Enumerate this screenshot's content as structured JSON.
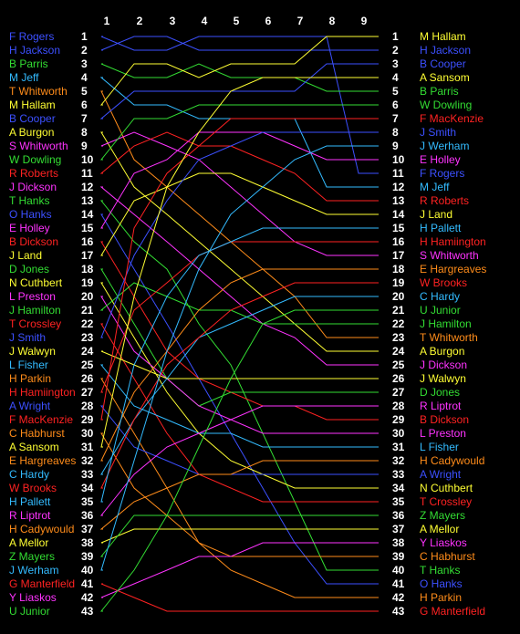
{
  "chart_data": {
    "type": "line",
    "chart_kind": "position-progression",
    "grid": false,
    "columns": [
      "1",
      "2",
      "3",
      "4",
      "5",
      "6",
      "7",
      "8",
      "9"
    ],
    "series": [
      {
        "name": "F Rogers",
        "color": "#3c50ff",
        "positions": [
          1,
          2,
          2,
          1,
          1,
          1,
          1,
          1,
          11
        ]
      },
      {
        "name": "H Jackson",
        "color": "#3c50ff",
        "positions": [
          2,
          1,
          1,
          2,
          2,
          2,
          2,
          2,
          2
        ]
      },
      {
        "name": "B Parris",
        "color": "#33dd33",
        "positions": [
          3,
          4,
          4,
          3,
          4,
          4,
          4,
          5,
          5
        ]
      },
      {
        "name": "M Jeff",
        "color": "#33bbff",
        "positions": [
          4,
          6,
          6,
          7,
          7,
          7,
          7,
          12,
          12
        ]
      },
      {
        "name": "T Whitworth",
        "color": "#ff8c1a",
        "positions": [
          5,
          10,
          12,
          14,
          16,
          18,
          20,
          23,
          23
        ]
      },
      {
        "name": "M Hallam",
        "color": "#ffff33",
        "positions": [
          6,
          3,
          3,
          4,
          3,
          3,
          3,
          1,
          1
        ]
      },
      {
        "name": "B Cooper",
        "color": "#3c50ff",
        "positions": [
          7,
          5,
          5,
          5,
          5,
          5,
          5,
          3,
          3
        ]
      },
      {
        "name": "A Burgon",
        "color": "#ffff33",
        "positions": [
          8,
          12,
          14,
          16,
          18,
          20,
          22,
          24,
          24
        ]
      },
      {
        "name": "S Whitworth",
        "color": "#ff33ff",
        "positions": [
          9,
          8,
          9,
          10,
          12,
          14,
          16,
          17,
          17
        ]
      },
      {
        "name": "W Dowling",
        "color": "#33dd33",
        "positions": [
          10,
          7,
          7,
          6,
          6,
          6,
          6,
          6,
          6
        ]
      },
      {
        "name": "R Roberts",
        "color": "#ff2222",
        "positions": [
          11,
          9,
          8,
          9,
          9,
          10,
          11,
          13,
          13
        ]
      },
      {
        "name": "J Dickson",
        "color": "#ff33ff",
        "positions": [
          12,
          14,
          16,
          18,
          20,
          22,
          23,
          25,
          25
        ]
      },
      {
        "name": "T Hanks",
        "color": "#33dd33",
        "positions": [
          13,
          16,
          18,
          22,
          25,
          30,
          35,
          40,
          40
        ]
      },
      {
        "name": "O Hanks",
        "color": "#3c50ff",
        "positions": [
          14,
          18,
          22,
          26,
          30,
          34,
          38,
          41,
          41
        ]
      },
      {
        "name": "E Holley",
        "color": "#ff33ff",
        "positions": [
          15,
          11,
          10,
          8,
          8,
          8,
          9,
          10,
          10
        ]
      },
      {
        "name": "B Dickson",
        "color": "#ff2222",
        "positions": [
          16,
          20,
          24,
          26,
          27,
          28,
          28,
          29,
          29
        ]
      },
      {
        "name": "J Land",
        "color": "#ffff33",
        "positions": [
          17,
          13,
          12,
          11,
          11,
          12,
          13,
          14,
          14
        ]
      },
      {
        "name": "D Jones",
        "color": "#33dd33",
        "positions": [
          18,
          22,
          26,
          28,
          27,
          27,
          27,
          27,
          27
        ]
      },
      {
        "name": "N Cuthbert",
        "color": "#ffff33",
        "positions": [
          19,
          23,
          27,
          30,
          32,
          33,
          34,
          34,
          34
        ]
      },
      {
        "name": "L Preston",
        "color": "#ff33ff",
        "positions": [
          20,
          24,
          26,
          28,
          29,
          30,
          30,
          30,
          30
        ]
      },
      {
        "name": "J Hamilton",
        "color": "#33dd33",
        "positions": [
          21,
          19,
          20,
          21,
          21,
          22,
          22,
          22,
          22
        ]
      },
      {
        "name": "T Crossley",
        "color": "#ff2222",
        "positions": [
          22,
          26,
          30,
          33,
          34,
          35,
          35,
          35,
          35
        ]
      },
      {
        "name": "J Smith",
        "color": "#3c50ff",
        "positions": [
          23,
          17,
          13,
          10,
          9,
          8,
          8,
          8,
          8
        ]
      },
      {
        "name": "J Walwyn",
        "color": "#ffff33",
        "positions": [
          24,
          25,
          26,
          26,
          26,
          26,
          26,
          26,
          26
        ]
      },
      {
        "name": "L Fisher",
        "color": "#33bbff",
        "positions": [
          25,
          28,
          29,
          30,
          30,
          31,
          31,
          31,
          31
        ]
      },
      {
        "name": "H Parkin",
        "color": "#ff8c1a",
        "positions": [
          26,
          30,
          34,
          38,
          40,
          41,
          42,
          42,
          42
        ]
      },
      {
        "name": "H Hamiington",
        "color": "#ff2222",
        "positions": [
          27,
          21,
          19,
          17,
          16,
          16,
          16,
          16,
          16
        ]
      },
      {
        "name": "A Wright",
        "color": "#3c50ff",
        "positions": [
          28,
          31,
          32,
          33,
          33,
          33,
          33,
          33,
          33
        ]
      },
      {
        "name": "F MacKenzie",
        "color": "#ff2222",
        "positions": [
          29,
          15,
          11,
          9,
          7,
          7,
          7,
          7,
          7
        ]
      },
      {
        "name": "C Habhurst",
        "color": "#ff8c1a",
        "positions": [
          30,
          34,
          36,
          38,
          39,
          39,
          39,
          39,
          39
        ]
      },
      {
        "name": "A Sansom",
        "color": "#ffff33",
        "positions": [
          31,
          20,
          12,
          8,
          5,
          4,
          4,
          4,
          4
        ]
      },
      {
        "name": "E Hargreaves",
        "color": "#ff8c1a",
        "positions": [
          32,
          27,
          24,
          21,
          19,
          18,
          18,
          18,
          18
        ]
      },
      {
        "name": "C Hardy",
        "color": "#33bbff",
        "positions": [
          33,
          29,
          26,
          23,
          22,
          21,
          20,
          20,
          20
        ]
      },
      {
        "name": "W Brooks",
        "color": "#ff2222",
        "positions": [
          34,
          29,
          25,
          23,
          21,
          20,
          19,
          19,
          19
        ]
      },
      {
        "name": "H Pallett",
        "color": "#33bbff",
        "positions": [
          35,
          25,
          20,
          17,
          16,
          15,
          15,
          15,
          15
        ]
      },
      {
        "name": "R Liptrot",
        "color": "#ff33ff",
        "positions": [
          36,
          33,
          31,
          30,
          29,
          28,
          28,
          28,
          28
        ]
      },
      {
        "name": "H Cadywould",
        "color": "#ff8c1a",
        "positions": [
          37,
          35,
          34,
          33,
          33,
          32,
          32,
          32,
          32
        ]
      },
      {
        "name": "A Mellor",
        "color": "#ffff33",
        "positions": [
          38,
          37,
          37,
          37,
          37,
          37,
          37,
          37,
          37
        ]
      },
      {
        "name": "Z Mayers",
        "color": "#33dd33",
        "positions": [
          39,
          36,
          36,
          36,
          36,
          36,
          36,
          36,
          36
        ]
      },
      {
        "name": "J Werham",
        "color": "#33bbff",
        "positions": [
          40,
          32,
          24,
          18,
          14,
          12,
          10,
          9,
          9
        ]
      },
      {
        "name": "G Manterfield",
        "color": "#ff2222",
        "positions": [
          41,
          42,
          43,
          43,
          43,
          43,
          43,
          43,
          43
        ]
      },
      {
        "name": "Y Liaskos",
        "color": "#ff33ff",
        "positions": [
          42,
          41,
          40,
          39,
          39,
          38,
          38,
          38,
          38
        ]
      },
      {
        "name": "U Junior",
        "color": "#33dd33",
        "positions": [
          43,
          40,
          36,
          31,
          26,
          22,
          21,
          21,
          21
        ]
      }
    ]
  }
}
